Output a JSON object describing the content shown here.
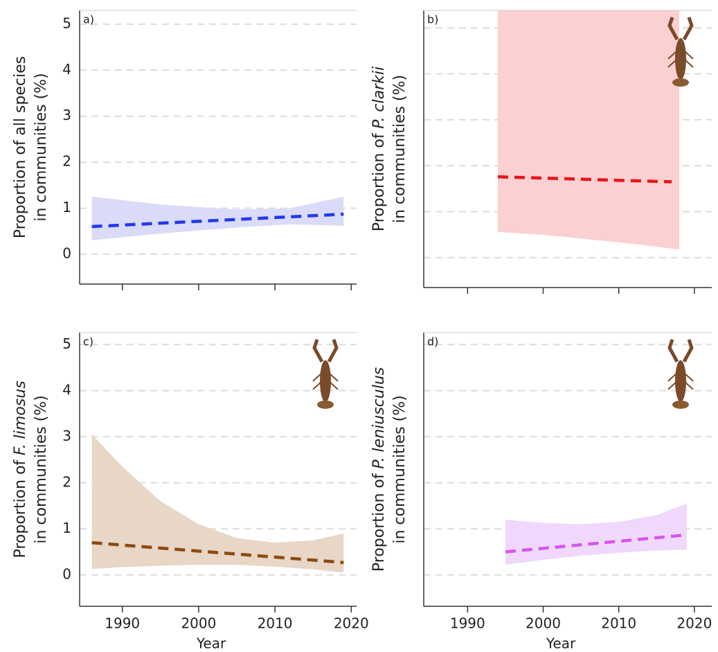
{
  "chart_data": [
    {
      "type": "line",
      "panel_label": "a)",
      "y_label_prefix": "Proportion of",
      "species": "all species",
      "species_italic": false,
      "y_label_line2": "in communities (%)",
      "xlim": [
        1984.4,
        2020.7
      ],
      "xticks": [
        1990,
        2000,
        2010,
        2020
      ],
      "ylim": [
        -0.65,
        5.3
      ],
      "yticks": [
        0,
        1,
        2,
        3,
        4,
        5
      ],
      "show_x_tick_labels": false,
      "show_y_tick_labels": true,
      "grid": true,
      "icon": false,
      "band": {
        "color": "#d9dbf8",
        "x": [
          1986,
          1995,
          2005,
          2012,
          2019
        ],
        "lower": [
          0.3,
          0.45,
          0.58,
          0.65,
          0.62
        ],
        "upper": [
          1.25,
          1.08,
          0.97,
          1.0,
          1.25
        ]
      },
      "line": {
        "color": "#2438ee",
        "x": [
          1986,
          2019
        ],
        "values": [
          0.6,
          0.87
        ]
      }
    },
    {
      "type": "line",
      "panel_label": "b)",
      "y_label_prefix": "Proportion of",
      "species": "P. clarkii",
      "species_italic": true,
      "y_label_line2": "in communities (%)",
      "xlim": [
        1984.2,
        2022.3
      ],
      "xticks": [
        1990,
        2000,
        2010,
        2020
      ],
      "ylim": [
        -0.65,
        5.38
      ],
      "yticks": [
        0,
        1,
        2,
        3,
        4,
        5
      ],
      "show_x_tick_labels": false,
      "show_y_tick_labels": false,
      "grid": true,
      "icon": true,
      "band": {
        "color": "#fbd0d0",
        "x": [
          1994,
          2000,
          2006,
          2012,
          2018
        ],
        "lower": [
          0.56,
          0.5,
          0.4,
          0.3,
          0.18
        ],
        "upper": [
          5.5,
          5.5,
          5.5,
          5.5,
          5.5
        ]
      },
      "line": {
        "color": "#e8141c",
        "x": [
          1994,
          2017
        ],
        "values": [
          1.76,
          1.65
        ]
      }
    },
    {
      "type": "line",
      "panel_label": "c)",
      "y_label_prefix": "Proportion of",
      "species": "F. limosus",
      "species_italic": true,
      "y_label_line2": "in communities (%)",
      "x_label": "Year",
      "xlim": [
        1984.4,
        2020.7
      ],
      "xticks": [
        1990,
        2000,
        2010,
        2020
      ],
      "ylim": [
        -0.68,
        5.26
      ],
      "yticks": [
        0,
        1,
        2,
        3,
        4,
        5
      ],
      "show_x_tick_labels": true,
      "show_y_tick_labels": true,
      "grid": true,
      "icon": true,
      "band": {
        "color": "#e8d6c6",
        "x": [
          1986,
          1990,
          1995,
          2000,
          2005,
          2010,
          2015,
          2019
        ],
        "lower": [
          0.13,
          0.17,
          0.2,
          0.22,
          0.22,
          0.18,
          0.12,
          0.05
        ],
        "upper": [
          3.05,
          2.35,
          1.6,
          1.1,
          0.8,
          0.7,
          0.75,
          0.9
        ]
      },
      "line": {
        "color": "#8b4a10",
        "x": [
          1986,
          2019
        ],
        "values": [
          0.7,
          0.27
        ]
      }
    },
    {
      "type": "line",
      "panel_label": "d)",
      "y_label_prefix": "Proportion of",
      "species": "P. leniusculus",
      "species_italic": true,
      "y_label_line2": "in communities (%)",
      "x_label": "Year",
      "xlim": [
        1984.2,
        2022.3
      ],
      "xticks": [
        1990,
        2000,
        2010,
        2020
      ],
      "ylim": [
        -0.68,
        5.26
      ],
      "yticks": [
        0,
        1,
        2,
        3,
        4,
        5
      ],
      "show_x_tick_labels": true,
      "show_y_tick_labels": false,
      "grid": true,
      "icon": true,
      "band": {
        "color": "#efd8fb",
        "x": [
          1995,
          2000,
          2005,
          2010,
          2015,
          2019
        ],
        "lower": [
          0.22,
          0.33,
          0.42,
          0.48,
          0.53,
          0.55
        ],
        "upper": [
          1.2,
          1.13,
          1.1,
          1.15,
          1.3,
          1.55
        ]
      },
      "line": {
        "color": "#d655f0",
        "x": [
          1995,
          2019
        ],
        "values": [
          0.5,
          0.87
        ]
      }
    }
  ]
}
